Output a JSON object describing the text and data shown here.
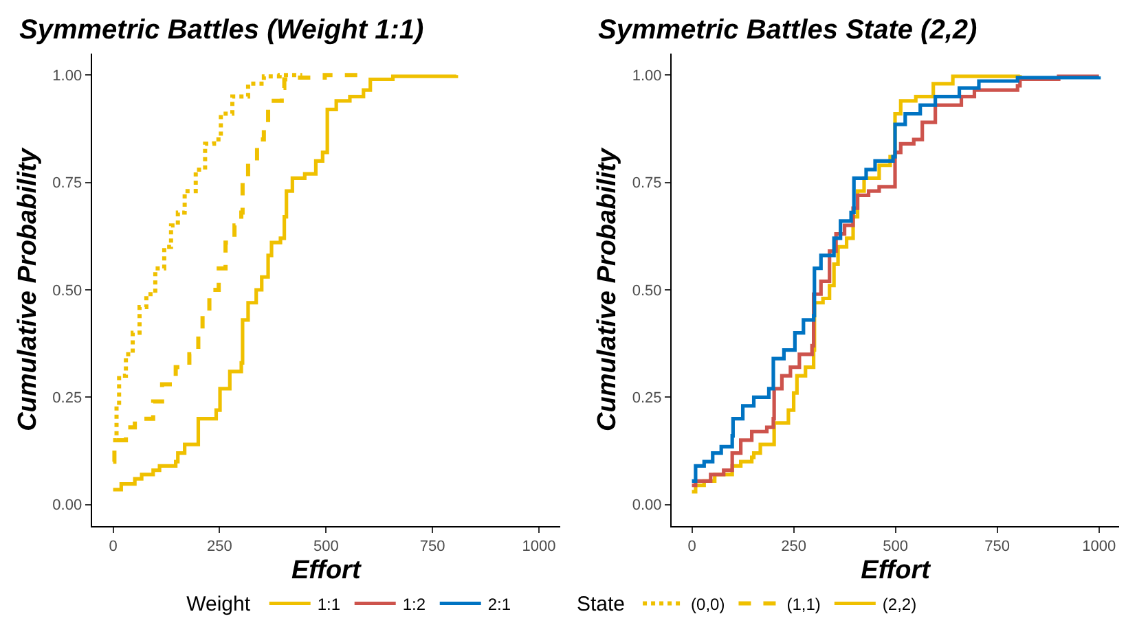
{
  "chart_data": [
    {
      "type": "step",
      "title": "Symmetric Battles (Weight 1:1)",
      "xlabel": "Effort",
      "ylabel": "Cumulative Probability",
      "legend_title": "State",
      "legend": "bottom",
      "grid": false,
      "xlim": [
        -50,
        1050
      ],
      "xticks": [
        0,
        250,
        500,
        750,
        1000
      ],
      "ylim": [
        -0.05,
        1.05
      ],
      "yticks": [
        {
          "value": 0,
          "label": "0.00"
        },
        {
          "value": 0.25,
          "label": "0.25"
        },
        {
          "value": 0.5,
          "label": "0.50"
        },
        {
          "value": 0.75,
          "label": "0.75"
        },
        {
          "value": 1,
          "label": "1.00"
        }
      ],
      "series": [
        {
          "name": "(0,0)",
          "color": "#efc000",
          "line_style": "dotted",
          "x": [
            0,
            8,
            14,
            30,
            46,
            62,
            78,
            99,
            120,
            136,
            152,
            168,
            194,
            216,
            237,
            253,
            280,
            317,
            354,
            391,
            444
          ],
          "values": [
            0.15,
            0.23,
            0.3,
            0.35,
            0.4,
            0.46,
            0.49,
            0.55,
            0.6,
            0.65,
            0.68,
            0.73,
            0.78,
            0.84,
            0.85,
            0.91,
            0.95,
            0.98,
            0.997,
            1,
            1
          ]
        },
        {
          "name": "(1,1)",
          "color": "#efc000",
          "line_style": "dashed",
          "x": [
            0,
            3,
            30,
            51,
            94,
            115,
            147,
            179,
            200,
            210,
            226,
            248,
            264,
            285,
            301,
            304,
            317,
            338,
            354,
            364,
            396,
            402,
            434,
            497,
            593
          ],
          "values": [
            0.1,
            0.15,
            0.18,
            0.2,
            0.24,
            0.28,
            0.32,
            0.35,
            0.4,
            0.45,
            0.5,
            0.55,
            0.61,
            0.65,
            0.68,
            0.76,
            0.8,
            0.85,
            0.89,
            0.94,
            0.97,
            0.99,
            0.994,
            1,
            1
          ]
        },
        {
          "name": "(2,2)",
          "color": "#efc000",
          "line_style": "solid",
          "x": [
            0,
            19,
            51,
            67,
            94,
            109,
            147,
            152,
            168,
            198,
            200,
            242,
            251,
            274,
            301,
            304,
            317,
            336,
            349,
            364,
            372,
            393,
            402,
            407,
            421,
            450,
            476,
            492,
            503,
            524,
            556,
            588,
            604,
            657,
            806
          ],
          "values": [
            0.035,
            0.048,
            0.06,
            0.07,
            0.08,
            0.09,
            0.1,
            0.12,
            0.14,
            0.14,
            0.2,
            0.22,
            0.27,
            0.31,
            0.33,
            0.43,
            0.47,
            0.5,
            0.53,
            0.58,
            0.61,
            0.62,
            0.67,
            0.73,
            0.76,
            0.77,
            0.8,
            0.82,
            0.92,
            0.94,
            0.95,
            0.965,
            0.99,
            0.997,
            1
          ]
        }
      ]
    },
    {
      "type": "step",
      "title": "Symmetric Battles State (2,2)",
      "xlabel": "Effort",
      "ylabel": "Cumulative Probability",
      "legend_title": "Weight",
      "legend": "bottom",
      "grid": false,
      "line_style": "solid",
      "xlim": [
        -50,
        1050
      ],
      "xticks": [
        0,
        250,
        500,
        750,
        1000
      ],
      "ylim": [
        -0.05,
        1.05
      ],
      "yticks": [
        {
          "value": 0,
          "label": "0.00"
        },
        {
          "value": 0.25,
          "label": "0.25"
        },
        {
          "value": 0.5,
          "label": "0.50"
        },
        {
          "value": 0.75,
          "label": "0.75"
        },
        {
          "value": 1,
          "label": "1.00"
        }
      ],
      "series": [
        {
          "name": "1:1",
          "color": "#efc000",
          "x": [
            0,
            9,
            30,
            56,
            99,
            120,
            147,
            152,
            168,
            200,
            202,
            237,
            250,
            258,
            279,
            299,
            301,
            322,
            338,
            349,
            359,
            380,
            396,
            407,
            423,
            460,
            487,
            499,
            513,
            550,
            593,
            641,
            806
          ],
          "values": [
            0.03,
            0.045,
            0.055,
            0.07,
            0.09,
            0.1,
            0.11,
            0.12,
            0.14,
            0.14,
            0.19,
            0.22,
            0.26,
            0.3,
            0.32,
            0.36,
            0.47,
            0.48,
            0.51,
            0.56,
            0.6,
            0.62,
            0.67,
            0.73,
            0.76,
            0.79,
            0.81,
            0.91,
            0.94,
            0.95,
            0.98,
            0.997,
            1
          ]
        },
        {
          "name": "1:2",
          "color": "#cd534c",
          "x": [
            0,
            9,
            46,
            78,
            99,
            120,
            147,
            184,
            200,
            202,
            221,
            242,
            264,
            295,
            299,
            317,
            338,
            354,
            375,
            396,
            407,
            434,
            460,
            499,
            513,
            545,
            566,
            598,
            662,
            694,
            800,
            806,
            901,
            1000
          ],
          "values": [
            0.045,
            0.055,
            0.07,
            0.08,
            0.12,
            0.15,
            0.17,
            0.18,
            0.2,
            0.27,
            0.3,
            0.32,
            0.35,
            0.37,
            0.49,
            0.52,
            0.59,
            0.63,
            0.65,
            0.69,
            0.72,
            0.73,
            0.74,
            0.82,
            0.84,
            0.85,
            0.89,
            0.93,
            0.95,
            0.965,
            0.975,
            0.99,
            0.997,
            0.997
          ]
        },
        {
          "name": "2:1",
          "color": "#0073c2",
          "x": [
            0,
            9,
            30,
            51,
            72,
            99,
            101,
            125,
            152,
            189,
            200,
            226,
            253,
            274,
            299,
            301,
            317,
            349,
            365,
            391,
            398,
            428,
            450,
            494,
            499,
            524,
            561,
            598,
            657,
            705,
            800,
            1000
          ],
          "values": [
            0.055,
            0.09,
            0.1,
            0.12,
            0.135,
            0.16,
            0.2,
            0.23,
            0.25,
            0.27,
            0.34,
            0.36,
            0.4,
            0.43,
            0.44,
            0.55,
            0.58,
            0.62,
            0.66,
            0.68,
            0.76,
            0.78,
            0.8,
            0.81,
            0.885,
            0.91,
            0.93,
            0.95,
            0.97,
            0.986,
            0.994,
            0.997
          ]
        }
      ]
    }
  ]
}
